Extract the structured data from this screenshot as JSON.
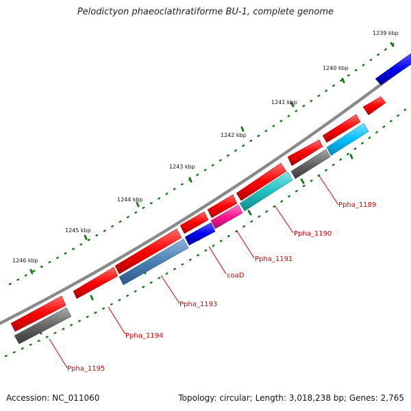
{
  "title": "Pelodictyon phaeoclathratiforme BU-1, complete genome",
  "footer": {
    "accession": "Accession: NC_011060",
    "summary": "Topology: circular; Length: 3,018,238 bp; Genes: 2,765"
  },
  "kbp_labels": [
    "1239 kbp",
    "1240 kbp",
    "1241 kbp",
    "1242 kbp",
    "1243 kbp",
    "1244 kbp",
    "1245 kbp",
    "1246 kbp"
  ],
  "gene_labels": [
    "Ppha_1189",
    "Ppha_1190",
    "Ppha_1191",
    "coaD",
    "Ppha_1193",
    "Ppha_1194",
    "Ppha_1195"
  ],
  "colors": {
    "backbone": "#8a8a8a",
    "tick": "#1a7a1a",
    "cds_forward": "#ff0000",
    "blue": "#0000ee",
    "cyan": "#00bfff",
    "teal": "#20c0c0",
    "magenta": "#ff1493",
    "steelblue": "#4a7fb5",
    "gray": "#666666",
    "label": "#cc0000"
  }
}
